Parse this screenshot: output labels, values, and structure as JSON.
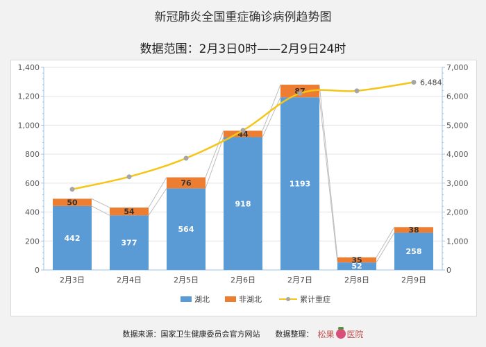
{
  "chart_data": {
    "type": "bar",
    "title": "新冠肺炎全国重症确诊病例趋势图",
    "subtitle": "数据范围：2月3日0时——2月9日24时",
    "categories": [
      "2月3日",
      "2月4日",
      "2月5日",
      "2月6日",
      "2月7日",
      "2月8日",
      "2月9日"
    ],
    "stacked": true,
    "series": [
      {
        "name": "湖北",
        "type": "bar",
        "axis": "left",
        "color": "#5b9bd5",
        "values": [
          442,
          377,
          564,
          918,
          1193,
          52,
          258
        ]
      },
      {
        "name": "非湖北",
        "type": "bar",
        "axis": "left",
        "color": "#ed7d31",
        "values": [
          50,
          54,
          76,
          44,
          87,
          35,
          38
        ]
      },
      {
        "name": "累计重症",
        "type": "line",
        "axis": "right",
        "color": "#f5c518",
        "values": [
          2788,
          3219,
          3859,
          4821,
          6101,
          6188,
          6484
        ],
        "labels": [
          "",
          "",
          "",
          "",
          "",
          "",
          "6,484"
        ]
      }
    ],
    "y_left": {
      "min": 0,
      "max": 1400,
      "ticks": [
        0,
        200,
        400,
        600,
        800,
        1000,
        1200,
        1400
      ],
      "tick_labels": [
        "0",
        "200",
        "400",
        "600",
        "800",
        "1,000",
        "1,200",
        "1,400"
      ]
    },
    "y_right": {
      "min": 0,
      "max": 7000,
      "ticks": [
        0,
        1000,
        2000,
        3000,
        4000,
        5000,
        6000,
        7000
      ],
      "tick_labels": [
        "0",
        "1,000",
        "2,000",
        "3,000",
        "4,000",
        "5,000",
        "6,000",
        "7,000"
      ]
    },
    "grid": true,
    "legend_position": "bottom"
  },
  "footer": {
    "source": "数据来源：国家卫生健康委员会官方网站",
    "compiler": "数据整理：",
    "brand_left": "松果",
    "brand_right": "医院",
    "logo_icon": "pinecone-logo-icon"
  }
}
